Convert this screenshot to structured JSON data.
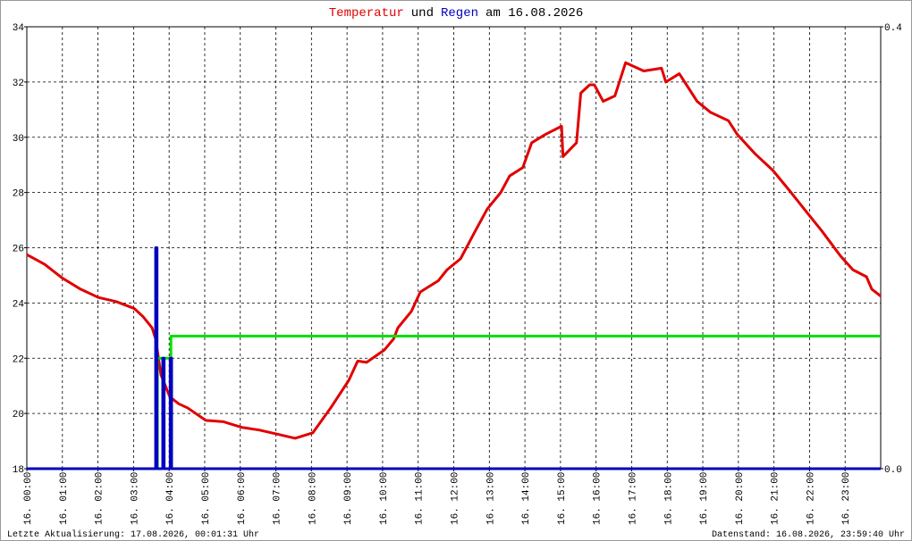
{
  "chart_data": {
    "type": "line",
    "title_parts": [
      {
        "text": "Temperatur",
        "color": "#e00000"
      },
      {
        "text": "und",
        "color": "#000000"
      },
      {
        "text": "Regen",
        "color": "#0000c0"
      },
      {
        "text": "am 16.08.2026",
        "color": "#000000"
      }
    ],
    "footer_left": "Letzte Aktualisierung: 17.08.2026, 00:01:31 Uhr",
    "footer_right": "Datenstand: 16.08.2026, 23:59:40 Uhr",
    "xlim": [
      0,
      24
    ],
    "xticks": [
      {
        "value": 0,
        "label": "16. 00:00"
      },
      {
        "value": 1,
        "label": "16. 01:00"
      },
      {
        "value": 2,
        "label": "16. 02:00"
      },
      {
        "value": 3,
        "label": "16. 03:00"
      },
      {
        "value": 4,
        "label": "16. 04:00"
      },
      {
        "value": 5,
        "label": "16. 05:00"
      },
      {
        "value": 6,
        "label": "16. 06:00"
      },
      {
        "value": 7,
        "label": "16. 07:00"
      },
      {
        "value": 8,
        "label": "16. 08:00"
      },
      {
        "value": 9,
        "label": "16. 09:00"
      },
      {
        "value": 10,
        "label": "16. 10:00"
      },
      {
        "value": 11,
        "label": "16. 11:00"
      },
      {
        "value": 12,
        "label": "16. 12:00"
      },
      {
        "value": 13,
        "label": "16. 13:00"
      },
      {
        "value": 14,
        "label": "16. 14:00"
      },
      {
        "value": 15,
        "label": "16. 15:00"
      },
      {
        "value": 16,
        "label": "16. 16:00"
      },
      {
        "value": 17,
        "label": "16. 17:00"
      },
      {
        "value": 18,
        "label": "16. 18:00"
      },
      {
        "value": 19,
        "label": "16. 19:00"
      },
      {
        "value": 20,
        "label": "16. 20:00"
      },
      {
        "value": 21,
        "label": "16. 21:00"
      },
      {
        "value": 22,
        "label": "16. 22:00"
      },
      {
        "value": 23,
        "label": "16. 23:00"
      }
    ],
    "ylim": [
      18,
      34
    ],
    "yticks": [
      18,
      20,
      22,
      24,
      26,
      28,
      30,
      32,
      34
    ],
    "y2lim": [
      0,
      0.4
    ],
    "y2ticks": [
      {
        "value": 0,
        "label": "0.0"
      },
      0.4
    ],
    "grid": true,
    "series": [
      {
        "name": "Temperatur",
        "color": "#e00000",
        "axis": "y",
        "x": [
          0,
          0.5,
          1.0,
          1.51,
          2.01,
          2.51,
          3.02,
          3.27,
          3.52,
          3.62,
          3.77,
          4.02,
          4.27,
          4.52,
          5.03,
          5.53,
          6.03,
          6.53,
          7.04,
          7.54,
          8.04,
          8.54,
          9.05,
          9.3,
          9.55,
          10.05,
          10.31,
          10.43,
          10.81,
          11.06,
          11.56,
          11.81,
          12.19,
          12.56,
          12.94,
          13.32,
          13.57,
          13.94,
          14.19,
          14.57,
          15.03,
          15.07,
          15.45,
          15.57,
          15.82,
          15.95,
          16.2,
          16.53,
          16.83,
          17.34,
          17.84,
          17.96,
          18.34,
          18.84,
          19.22,
          19.72,
          19.97,
          20.47,
          20.97,
          21.48,
          21.85,
          22.35,
          22.87,
          23.22,
          23.6,
          23.75,
          24.0
        ],
        "values": [
          25.75,
          25.4,
          24.9,
          24.5,
          24.2,
          24.05,
          23.8,
          23.5,
          23.1,
          22.7,
          21.4,
          20.6,
          20.35,
          20.2,
          19.75,
          19.7,
          19.5,
          19.4,
          19.25,
          19.1,
          19.3,
          20.2,
          21.2,
          21.9,
          21.85,
          22.3,
          22.7,
          23.1,
          23.7,
          24.4,
          24.8,
          25.2,
          25.6,
          26.5,
          27.4,
          28.0,
          28.6,
          28.9,
          29.8,
          30.1,
          30.4,
          29.3,
          29.8,
          31.6,
          31.9,
          31.9,
          31.3,
          31.5,
          32.7,
          32.4,
          32.5,
          32.0,
          32.3,
          31.3,
          30.9,
          30.6,
          30.1,
          29.4,
          28.8,
          28.0,
          27.4,
          26.6,
          25.7,
          25.2,
          24.95,
          24.5,
          24.25
        ]
      },
      {
        "color": "#00e000",
        "axis": "y2",
        "x": [
          0,
          3.67,
          3.67,
          4.05,
          4.05,
          24
        ],
        "values": [
          0,
          0,
          0.1,
          0.1,
          0.12,
          0.12
        ]
      },
      {
        "name": "Regen",
        "color": "#0000c0",
        "axis": "y2",
        "x": [
          0,
          3.62,
          3.62,
          3.66,
          3.66,
          3.82,
          3.82,
          3.86,
          3.86,
          4.03,
          4.03,
          4.07,
          4.07,
          24
        ],
        "values": [
          0,
          0,
          0.2,
          0.2,
          0,
          0,
          0.1,
          0.1,
          0,
          0,
          0.1,
          0.1,
          0,
          0
        ]
      }
    ]
  }
}
